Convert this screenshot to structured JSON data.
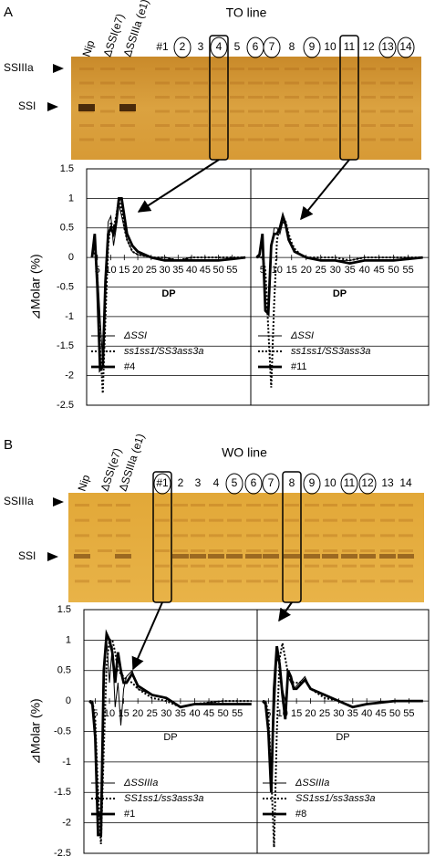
{
  "panels": [
    {
      "letter": "A",
      "title": "TO line",
      "markers": [
        "SSIIIa",
        "SSI"
      ],
      "lanes": [
        {
          "label": "Nip"
        },
        {
          "label": "ΔSSI(e7)"
        },
        {
          "label": "ΔSSIIIa (e1)"
        },
        {
          "label": "#1"
        },
        {
          "label": "2",
          "circled": true
        },
        {
          "label": "3"
        },
        {
          "label": "4",
          "circled": true,
          "boxed": true
        },
        {
          "label": "5"
        },
        {
          "label": "6",
          "circled": true
        },
        {
          "label": "7",
          "circled": true
        },
        {
          "label": "8"
        },
        {
          "label": "9",
          "circled": true
        },
        {
          "label": "10"
        },
        {
          "label": "11",
          "boxed": true
        },
        {
          "label": "12"
        },
        {
          "label": "13",
          "circled": true
        },
        {
          "label": "14",
          "circled": true
        }
      ]
    },
    {
      "letter": "B",
      "title": "WO line",
      "markers": [
        "SSIIIa",
        "SSI"
      ],
      "lanes": [
        {
          "label": "Nip"
        },
        {
          "label": "ΔSSI(e7)"
        },
        {
          "label": "ΔSSIIIa (e1)"
        },
        {
          "label": "#1",
          "circled": true,
          "boxed": true
        },
        {
          "label": "2"
        },
        {
          "label": "3"
        },
        {
          "label": "4"
        },
        {
          "label": "5",
          "circled": true
        },
        {
          "label": "6",
          "circled": true
        },
        {
          "label": "7",
          "circled": true
        },
        {
          "label": "8",
          "boxed": true
        },
        {
          "label": "9",
          "circled": true
        },
        {
          "label": "10"
        },
        {
          "label": "11",
          "circled": true
        },
        {
          "label": "12",
          "circled": true
        },
        {
          "label": "13"
        },
        {
          "label": "14"
        }
      ]
    }
  ],
  "chart_data": [
    {
      "type": "line",
      "ylabel": "⊿Molar (%)",
      "xlabel": "DP",
      "grid": true,
      "ytick_labels": true,
      "xlim": [
        1,
        62
      ],
      "xticks": [
        5,
        10,
        15,
        20,
        25,
        30,
        35,
        40,
        45,
        50,
        55
      ],
      "ylim": [
        -2.5,
        1.5
      ],
      "yticks": [
        -2.5,
        -2,
        -1.5,
        -1,
        -0.5,
        0,
        0.5,
        1,
        1.5
      ],
      "x": [
        3,
        4,
        5,
        6,
        7,
        8,
        9,
        10,
        11,
        12,
        13,
        14,
        15,
        16,
        18,
        20,
        25,
        30,
        35,
        40,
        50,
        60
      ],
      "series": [
        {
          "name": "ΔSSI",
          "dash": "solid",
          "weight": "thin",
          "color": "#000",
          "values": [
            0,
            0.2,
            -0.2,
            -1.0,
            -1.8,
            -0.3,
            0.6,
            0.7,
            0.2,
            0.5,
            0.9,
            0.7,
            0.5,
            0.3,
            0.1,
            0.05,
            0,
            0,
            -0.05,
            0,
            0,
            0
          ]
        },
        {
          "name": "ss1ss1/SS3ass3a",
          "dash": "dotted",
          "weight": "thick",
          "color": "#000",
          "values": [
            0,
            0.1,
            -0.3,
            -1.5,
            -2.3,
            -1.0,
            0.2,
            0.6,
            0.5,
            0.7,
            1.0,
            0.8,
            0.5,
            0.3,
            0.1,
            0.05,
            0,
            0,
            -0.05,
            0,
            0,
            0
          ]
        },
        {
          "name": "#4",
          "dash": "solid",
          "weight": "thick",
          "color": "#000",
          "values": [
            0,
            0.4,
            -0.5,
            -1.9,
            -1.85,
            -0.4,
            0.4,
            0.5,
            0.4,
            0.6,
            1.0,
            1.0,
            0.7,
            0.4,
            0.2,
            0.1,
            0,
            -0.05,
            -0.05,
            -0.05,
            -0.05,
            0
          ]
        }
      ]
    },
    {
      "type": "line",
      "xlabel": "DP",
      "grid": true,
      "ytick_labels": false,
      "xlim": [
        1,
        62
      ],
      "xticks": [
        5,
        10,
        15,
        20,
        25,
        30,
        35,
        40,
        45,
        50,
        55
      ],
      "ylim": [
        -2.5,
        1.5
      ],
      "yticks": [
        -2.5,
        -2,
        -1.5,
        -1,
        -0.5,
        0,
        0.5,
        1,
        1.5
      ],
      "x": [
        3,
        4,
        5,
        6,
        7,
        8,
        9,
        10,
        11,
        12,
        13,
        14,
        15,
        16,
        18,
        20,
        25,
        30,
        35,
        40,
        50,
        60
      ],
      "series": [
        {
          "name": "ΔSSI",
          "dash": "solid",
          "weight": "thin",
          "color": "#000",
          "values": [
            0,
            0,
            0.3,
            -0.8,
            -0.9,
            0.1,
            0.5,
            0.5,
            0.4,
            0.6,
            0.55,
            0.35,
            0.2,
            0.1,
            0.05,
            0,
            -0.05,
            -0.05,
            -0.05,
            0,
            0,
            0
          ]
        },
        {
          "name": "ss1ss1/SS3ass3a",
          "dash": "dotted",
          "weight": "thick",
          "color": "#000",
          "values": [
            0,
            0,
            0,
            -0.2,
            -1.2,
            -2.2,
            -0.8,
            0.3,
            0.5,
            0.7,
            0.6,
            0.4,
            0.25,
            0.15,
            0.05,
            0,
            0,
            0,
            -0.05,
            0,
            0,
            0
          ]
        },
        {
          "name": "#11",
          "dash": "solid",
          "weight": "thick",
          "color": "#000",
          "values": [
            0,
            0.05,
            0.4,
            -0.9,
            -0.95,
            0.2,
            0.4,
            0.4,
            0.5,
            0.7,
            0.55,
            0.3,
            0.2,
            0.1,
            0.05,
            0,
            -0.05,
            -0.05,
            -0.1,
            -0.05,
            -0.05,
            0
          ]
        }
      ]
    },
    {
      "type": "line",
      "ylabel": "⊿Molar (%)",
      "xlabel": "DP",
      "grid": true,
      "ytick_labels": true,
      "xlim": [
        1,
        62
      ],
      "xticks": [
        5,
        10,
        15,
        20,
        25,
        30,
        35,
        40,
        45,
        50,
        55
      ],
      "ylim": [
        -2.5,
        1.5
      ],
      "yticks": [
        -2.5,
        -2,
        -1.5,
        -1,
        -0.5,
        0,
        0.5,
        1,
        1.5
      ],
      "x": [
        3,
        4,
        5,
        6,
        7,
        8,
        9,
        10,
        11,
        12,
        13,
        14,
        15,
        16,
        18,
        20,
        25,
        30,
        35,
        40,
        50,
        60
      ],
      "series": [
        {
          "name": "ΔSSIIIa",
          "dash": "solid",
          "weight": "thin",
          "color": "#000",
          "values": [
            0,
            0,
            -0.4,
            -1.8,
            -2.0,
            0.3,
            1.0,
            0.3,
            0.9,
            -0.1,
            0.3,
            -0.4,
            0.2,
            0.4,
            0.5,
            0.2,
            0.1,
            0.05,
            -0.1,
            -0.05,
            0,
            0
          ]
        },
        {
          "name": "SS1ss1/ss3ass3a",
          "dash": "dotted",
          "weight": "thick",
          "color": "#000",
          "values": [
            0,
            0,
            -0.3,
            -1.5,
            -2.35,
            -0.8,
            0.6,
            1.0,
            1.0,
            0.8,
            0.5,
            0.45,
            0.4,
            0.35,
            0.3,
            0.2,
            0.05,
            0,
            -0.1,
            -0.05,
            0,
            0
          ]
        },
        {
          "name": "#1",
          "dash": "solid",
          "weight": "thick",
          "color": "#000",
          "values": [
            0,
            -0.05,
            -0.6,
            -2.2,
            -2.2,
            0.5,
            1.1,
            1.0,
            0.8,
            0.3,
            0.8,
            0.5,
            0.3,
            0.3,
            0.45,
            0.25,
            0.1,
            0.05,
            -0.1,
            -0.05,
            -0.05,
            -0.05
          ]
        }
      ]
    },
    {
      "type": "line",
      "xlabel": "DP",
      "grid": true,
      "ytick_labels": false,
      "xlim": [
        1,
        62
      ],
      "xticks": [
        5,
        10,
        15,
        20,
        25,
        30,
        35,
        40,
        45,
        50,
        55
      ],
      "ylim": [
        -2.5,
        1.5
      ],
      "yticks": [
        -2.5,
        -2,
        -1.5,
        -1,
        -0.5,
        0,
        0.5,
        1,
        1.5
      ],
      "x": [
        3,
        4,
        5,
        6,
        7,
        8,
        9,
        10,
        11,
        12,
        13,
        14,
        15,
        16,
        18,
        20,
        25,
        30,
        35,
        40,
        50,
        60
      ],
      "series": [
        {
          "name": "ΔSSIIIa",
          "dash": "solid",
          "weight": "thin",
          "color": "#000",
          "values": [
            0,
            0,
            -0.4,
            -1.2,
            -0.3,
            0.7,
            0.6,
            0.2,
            0,
            0.4,
            0.3,
            0.2,
            0.25,
            0.3,
            0.4,
            0.2,
            0.1,
            0,
            -0.1,
            -0.05,
            0,
            0
          ]
        },
        {
          "name": "SS1ss1/ss3ass3a",
          "dash": "dotted",
          "weight": "thick",
          "color": "#000",
          "values": [
            0,
            0,
            -0.2,
            -1.2,
            -2.4,
            -0.5,
            0.7,
            0.95,
            0.7,
            0.45,
            0.35,
            0.3,
            0.3,
            0.3,
            0.35,
            0.2,
            0.05,
            0,
            -0.1,
            -0.05,
            0,
            0
          ]
        },
        {
          "name": "#8",
          "dash": "solid",
          "weight": "thick",
          "color": "#000",
          "values": [
            0,
            -0.05,
            -0.5,
            -1.5,
            0.2,
            0.9,
            0.6,
            0.1,
            -0.3,
            0.5,
            0.4,
            0.2,
            0.2,
            0.25,
            0.35,
            0.2,
            0.1,
            0,
            -0.1,
            -0.05,
            0,
            0
          ]
        }
      ]
    }
  ]
}
